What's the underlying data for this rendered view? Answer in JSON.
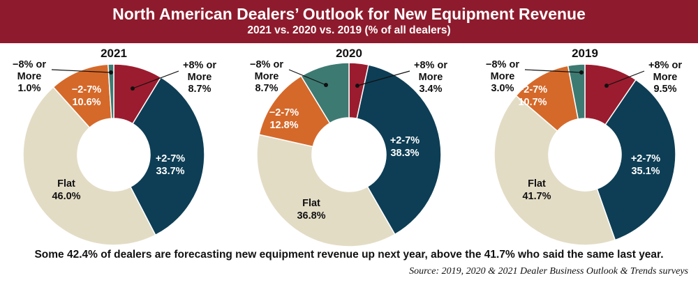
{
  "header": {
    "title": "North American Dealers’ Outlook for New Equipment Revenue",
    "subtitle": "2021 vs. 2020 vs. 2019 (% of all dealers)"
  },
  "footnote": "Some 42.4% of dealers are forecasting new equipment revenue up next year, above the 41.7% who said the same last year.",
  "source": "Source: 2019, 2020 & 2021 Dealer Business Outlook & Trends surveys",
  "colors": {
    "header_bg": "#8e1b2d",
    "plus8": "#9b1c2e",
    "plus2_7": "#0d3e55",
    "flat": "#e3dcc5",
    "minus2_7": "#d5692a",
    "minus8": "#3d7a72"
  },
  "chart_data": [
    {
      "type": "pie",
      "title": "2021",
      "categories": [
        "+8% or More",
        "+2-7%",
        "Flat",
        "−2-7%",
        "−8% or More"
      ],
      "values": [
        8.7,
        33.7,
        46.0,
        10.6,
        1.0
      ],
      "value_labels": [
        "8.7%",
        "33.7%",
        "46.0%",
        "10.6%",
        "1.0%"
      ]
    },
    {
      "type": "pie",
      "title": "2020",
      "categories": [
        "+8% or More",
        "+2-7%",
        "Flat",
        "−2-7%",
        "−8% or More"
      ],
      "values": [
        3.4,
        38.3,
        36.8,
        12.8,
        8.7
      ],
      "value_labels": [
        "3.4%",
        "38.3%",
        "36.8%",
        "12.8%",
        "8.7%"
      ]
    },
    {
      "type": "pie",
      "title": "2019",
      "categories": [
        "+8% or More",
        "+2-7%",
        "Flat",
        "−2-7%",
        "−8% or More"
      ],
      "values": [
        9.5,
        35.1,
        41.7,
        10.7,
        3.0
      ],
      "value_labels": [
        "9.5%",
        "35.1%",
        "41.7%",
        "10.7%",
        "3.0%"
      ]
    }
  ]
}
